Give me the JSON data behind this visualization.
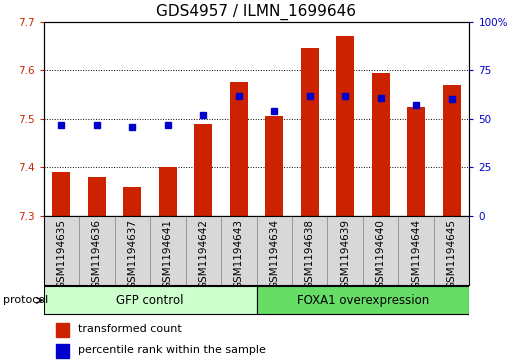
{
  "title": "GDS4957 / ILMN_1699646",
  "samples": [
    "GSM1194635",
    "GSM1194636",
    "GSM1194637",
    "GSM1194641",
    "GSM1194642",
    "GSM1194643",
    "GSM1194634",
    "GSM1194638",
    "GSM1194639",
    "GSM1194640",
    "GSM1194644",
    "GSM1194645"
  ],
  "transformed_count": [
    7.39,
    7.38,
    7.36,
    7.4,
    7.49,
    7.575,
    7.505,
    7.645,
    7.67,
    7.595,
    7.525,
    7.57
  ],
  "percentile_rank": [
    47,
    47,
    46,
    47,
    52,
    62,
    54,
    62,
    62,
    61,
    57,
    60
  ],
  "ylim_left": [
    7.3,
    7.7
  ],
  "ylim_right": [
    0,
    100
  ],
  "yticks_left": [
    7.3,
    7.4,
    7.5,
    7.6,
    7.7
  ],
  "yticks_right": [
    0,
    25,
    50,
    75,
    100
  ],
  "bar_color": "#CC2200",
  "dot_color": "#0000CC",
  "bar_bottom": 7.3,
  "group1_label": "GFP control",
  "group2_label": "FOXA1 overexpression",
  "group1_count": 6,
  "group2_count": 6,
  "group1_color": "#CCFFCC",
  "group2_color": "#66DD66",
  "protocol_label": "protocol",
  "legend_bar_label": "transformed count",
  "legend_dot_label": "percentile rank within the sample",
  "title_fontsize": 11,
  "tick_label_fontsize": 7.5,
  "background_color": "#ffffff",
  "sample_box_color": "#D8D8D8",
  "bar_width": 0.5
}
